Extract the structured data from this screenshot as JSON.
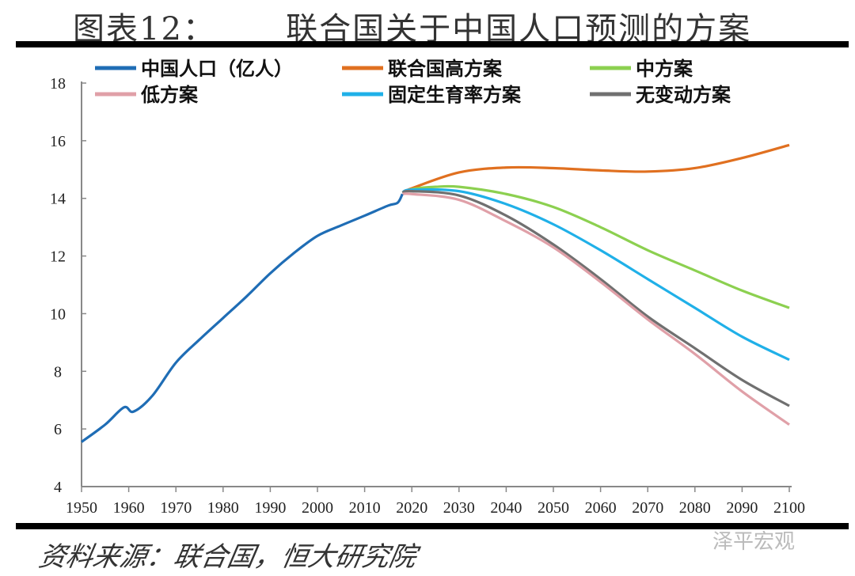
{
  "header": {
    "title": "图表12：      联合国关于中国人口预测的方案"
  },
  "footer": {
    "source": "资料来源：联合国，恒大研究院",
    "watermark": "泽平宏观"
  },
  "chart_data": {
    "type": "line",
    "title": "",
    "xlabel": "",
    "ylabel": "",
    "xlim": [
      1950,
      2100
    ],
    "ylim": [
      4,
      18
    ],
    "xticks": [
      1950,
      1960,
      1970,
      1980,
      1990,
      2000,
      2010,
      2020,
      2030,
      2040,
      2050,
      2060,
      2070,
      2080,
      2090,
      2100
    ],
    "yticks": [
      4,
      6,
      8,
      10,
      12,
      14,
      16,
      18
    ],
    "grid": false,
    "legend": "top",
    "series": [
      {
        "name": "中国人口（亿人）",
        "color": "#1f6db5",
        "x": [
          1950,
          1955,
          1959,
          1961,
          1965,
          1970,
          1975,
          1980,
          1985,
          1990,
          1995,
          2000,
          2005,
          2010,
          2015,
          2017,
          2018
        ],
        "y": [
          5.55,
          6.15,
          6.75,
          6.6,
          7.15,
          8.3,
          9.1,
          9.85,
          10.6,
          11.4,
          12.1,
          12.7,
          13.06,
          13.4,
          13.75,
          13.85,
          14.15
        ]
      },
      {
        "name": "联合国高方案",
        "color": "#e07020",
        "x": [
          2018,
          2020,
          2030,
          2040,
          2050,
          2060,
          2070,
          2080,
          2090,
          2100
        ],
        "y": [
          14.2,
          14.35,
          14.9,
          15.07,
          15.05,
          14.97,
          14.93,
          15.05,
          15.4,
          15.85
        ]
      },
      {
        "name": "中方案",
        "color": "#8cd050",
        "x": [
          2018,
          2020,
          2025,
          2030,
          2040,
          2050,
          2060,
          2070,
          2080,
          2090,
          2100
        ],
        "y": [
          14.2,
          14.32,
          14.4,
          14.4,
          14.15,
          13.7,
          13.0,
          12.2,
          11.5,
          10.8,
          10.2
        ]
      },
      {
        "name": "低方案",
        "color": "#e0a0a8",
        "x": [
          2018,
          2020,
          2030,
          2040,
          2050,
          2060,
          2070,
          2080,
          2090,
          2100
        ],
        "y": [
          14.15,
          14.15,
          13.95,
          13.2,
          12.3,
          11.1,
          9.8,
          8.6,
          7.3,
          6.15
        ]
      },
      {
        "name": "固定生育率方案",
        "color": "#20b0e8",
        "x": [
          2018,
          2020,
          2030,
          2040,
          2050,
          2060,
          2070,
          2080,
          2090,
          2100
        ],
        "y": [
          14.2,
          14.3,
          14.25,
          13.8,
          13.1,
          12.2,
          11.2,
          10.2,
          9.2,
          8.4
        ]
      },
      {
        "name": "无变动方案",
        "color": "#707070",
        "x": [
          2018,
          2020,
          2030,
          2040,
          2050,
          2060,
          2070,
          2080,
          2090,
          2100
        ],
        "y": [
          14.2,
          14.25,
          14.1,
          13.4,
          12.4,
          11.2,
          9.9,
          8.8,
          7.7,
          6.8
        ]
      }
    ]
  }
}
